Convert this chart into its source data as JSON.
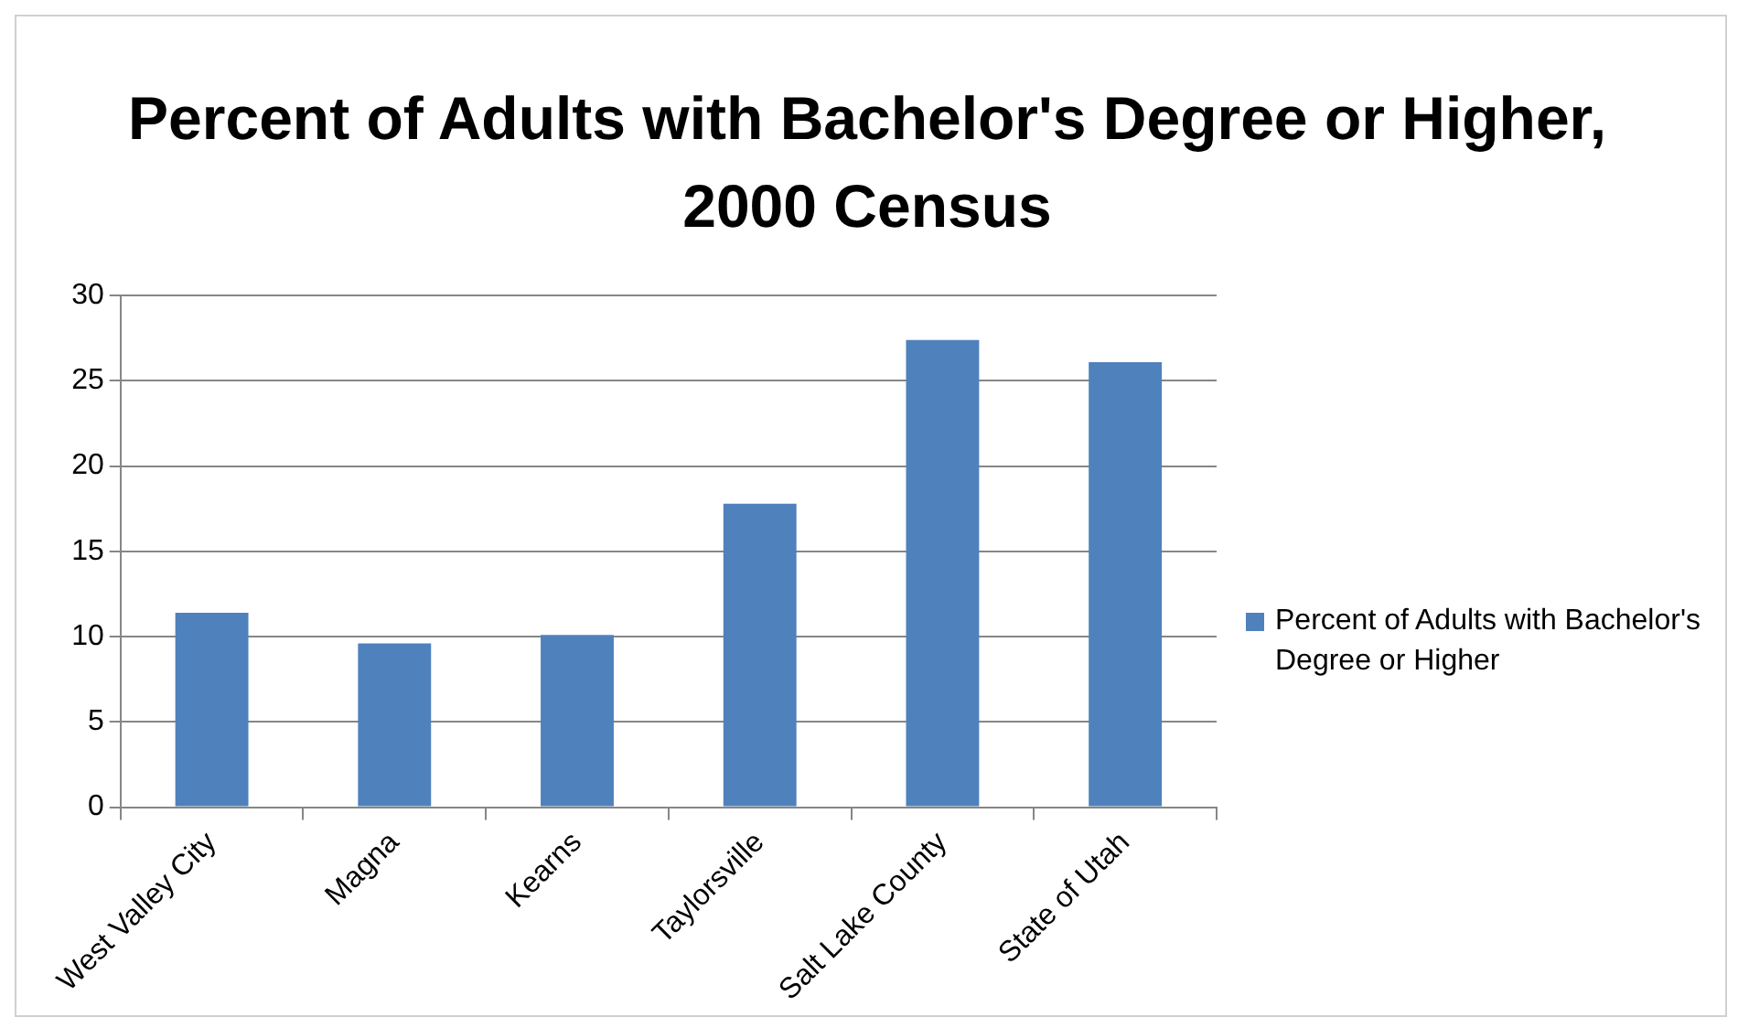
{
  "chart_data": {
    "type": "bar",
    "title": "Percent of Adults with Bachelor's Degree or Higher, 2000 Census",
    "categories": [
      "West Valley City",
      "Magna",
      "Kearns",
      "Taylorsville",
      "Salt Lake County",
      "State of Utah"
    ],
    "series": [
      {
        "name": "Percent of Adults with Bachelor's Degree or Higher",
        "color": "#4f81bd",
        "values": [
          11.4,
          9.6,
          10.1,
          17.8,
          27.4,
          26.1
        ]
      }
    ],
    "ylim": [
      0,
      30
    ],
    "yticks": [
      0,
      5,
      10,
      15,
      20,
      25,
      30
    ],
    "grid": "y",
    "legend": "right"
  }
}
